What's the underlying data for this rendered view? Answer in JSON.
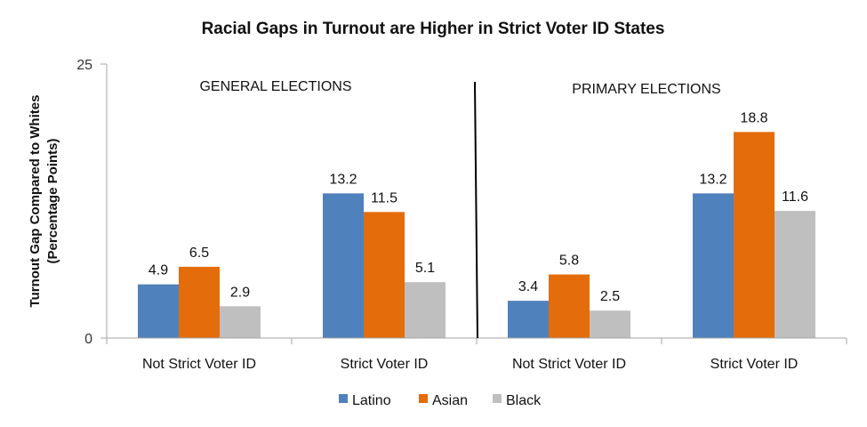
{
  "chart_data": {
    "type": "bar",
    "title": "Racial Gaps in Turnout are Higher in Strict Voter ID States",
    "xlabel": "",
    "ylabel": [
      "Turnout Gap Compared to Whites",
      "(Percentage Points)"
    ],
    "ylim": [
      0,
      25
    ],
    "yticks": [
      0,
      25
    ],
    "grid": false,
    "legend_position": "bottom",
    "panel_labels": [
      "GENERAL ELECTIONS",
      "PRIMARY ELECTIONS"
    ],
    "categories": [
      "Not Strict Voter ID",
      "Strict Voter ID",
      "Not Strict Voter ID",
      "Strict Voter ID"
    ],
    "series": [
      {
        "name": "Latino",
        "color": "#4F81BD",
        "values": [
          4.9,
          13.2,
          3.4,
          13.2
        ]
      },
      {
        "name": "Asian",
        "color": "#E46C0A",
        "values": [
          6.5,
          11.5,
          5.8,
          18.8
        ]
      },
      {
        "name": "Black",
        "color": "#BFBFBF",
        "values": [
          2.9,
          5.1,
          2.5,
          11.6
        ]
      }
    ],
    "data_labels": [
      [
        "4.9",
        "13.2",
        "3.4",
        "13.2"
      ],
      [
        "6.5",
        "11.5",
        "5.8",
        "18.8"
      ],
      [
        "2.9",
        "5.1",
        "2.5",
        "11.6"
      ]
    ]
  }
}
